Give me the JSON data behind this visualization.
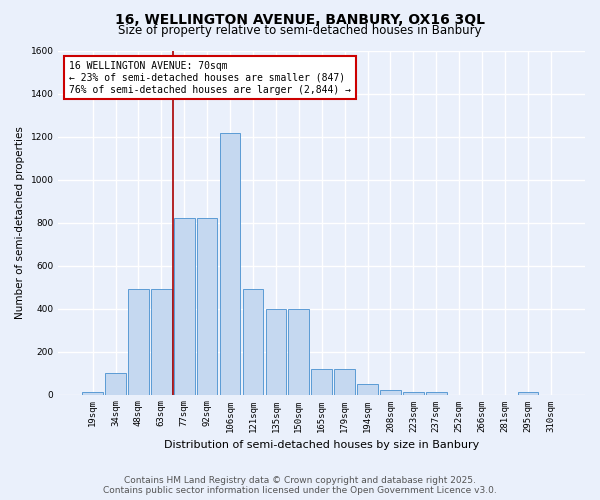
{
  "title_line1": "16, WELLINGTON AVENUE, BANBURY, OX16 3QL",
  "title_line2": "Size of property relative to semi-detached houses in Banbury",
  "xlabel": "Distribution of semi-detached houses by size in Banbury",
  "ylabel": "Number of semi-detached properties",
  "categories": [
    "19sqm",
    "34sqm",
    "48sqm",
    "63sqm",
    "77sqm",
    "92sqm",
    "106sqm",
    "121sqm",
    "135sqm",
    "150sqm",
    "165sqm",
    "179sqm",
    "194sqm",
    "208sqm",
    "223sqm",
    "237sqm",
    "252sqm",
    "266sqm",
    "281sqm",
    "295sqm",
    "310sqm"
  ],
  "values": [
    10,
    100,
    490,
    490,
    820,
    820,
    1220,
    490,
    400,
    400,
    120,
    120,
    50,
    20,
    10,
    10,
    0,
    0,
    0,
    10,
    0
  ],
  "bar_color": "#c5d8f0",
  "bar_edge_color": "#5b9bd5",
  "red_line_x": 3.5,
  "annotation_text": "16 WELLINGTON AVENUE: 70sqm\n← 23% of semi-detached houses are smaller (847)\n76% of semi-detached houses are larger (2,844) →",
  "annotation_box_color": "#ffffff",
  "annotation_box_edge": "#cc0000",
  "ylim": [
    0,
    1600
  ],
  "yticks": [
    0,
    200,
    400,
    600,
    800,
    1000,
    1200,
    1400,
    1600
  ],
  "bg_color": "#eaf0fb",
  "plot_bg_color": "#eaf0fb",
  "grid_color": "#ffffff",
  "footer_line1": "Contains HM Land Registry data © Crown copyright and database right 2025.",
  "footer_line2": "Contains public sector information licensed under the Open Government Licence v3.0.",
  "title_fontsize": 10,
  "subtitle_fontsize": 8.5,
  "tick_fontsize": 6.5,
  "ylabel_fontsize": 7.5,
  "xlabel_fontsize": 8,
  "annotation_fontsize": 7,
  "footer_fontsize": 6.5
}
